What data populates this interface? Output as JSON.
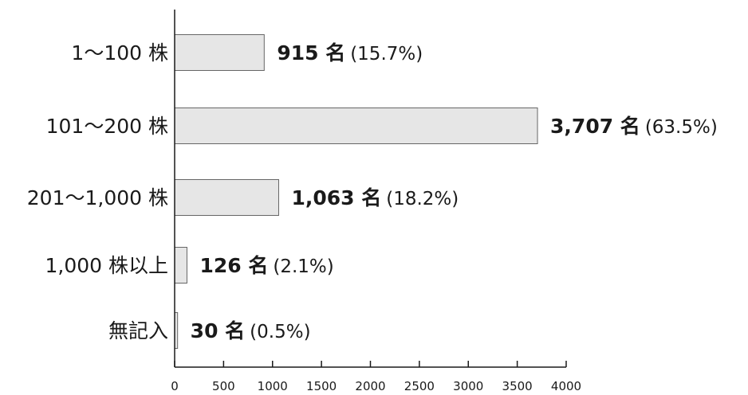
{
  "chart_data": {
    "type": "bar",
    "orientation": "horizontal",
    "categories": [
      "1〜100 株",
      "101〜200 株",
      "201〜1,000 株",
      "1,000 株以上",
      "無記入"
    ],
    "values": [
      915,
      3707,
      1063,
      126,
      30
    ],
    "data_labels": [
      {
        "count": "915 名",
        "percent": "(15.7%)"
      },
      {
        "count": "3,707 名",
        "percent": "(63.5%)"
      },
      {
        "count": "1,063 名",
        "percent": "(18.2%)"
      },
      {
        "count": "126 名",
        "percent": "(2.1%)"
      },
      {
        "count": "30 名",
        "percent": "(0.5%)"
      }
    ],
    "xlim": [
      0,
      4000
    ],
    "xticks": [
      0,
      500,
      1000,
      1500,
      2000,
      2500,
      3000,
      3500,
      4000
    ],
    "title": "",
    "xlabel": "",
    "ylabel": "",
    "grid": false,
    "colors": {
      "bar_fill": "#e6e6e6",
      "bar_stroke": "#666666",
      "axis": "#1a1a1a",
      "text": "#1a1a1a"
    }
  }
}
